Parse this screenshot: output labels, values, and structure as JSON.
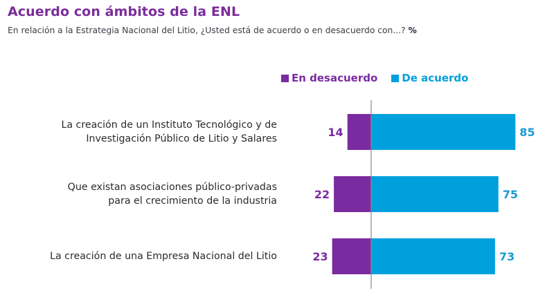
{
  "header": {
    "title": "Acuerdo con ámbitos de la ENL",
    "subtitle": "En relación a la Estrategia Nacional del Litio, ¿Usted está de acuerdo o en desacuerdo con...?",
    "subtitle_unit": "%"
  },
  "colors": {
    "disagree": "#7b2ba0",
    "agree": "#00a0dd",
    "axis": "#8a8a8a"
  },
  "chart_data": {
    "type": "bar",
    "orientation": "horizontal-diverging",
    "title": "Acuerdo con ámbitos de la ENL",
    "subtitle": "En relación a la Estrategia Nacional del Litio, ¿Usted está de acuerdo o en desacuerdo con...? %",
    "legend_position": "top-right",
    "grid": false,
    "categories": [
      [
        "La creación de un Instituto Tecnológico y de",
        "Investigación Público de Litio y Salares"
      ],
      [
        "Que existan asociaciones público-privadas",
        "para el crecimiento de la industria"
      ],
      [
        "La creación de una Empresa Nacional del Litio"
      ]
    ],
    "series": [
      {
        "name": "En desacuerdo",
        "values": [
          14,
          22,
          23
        ],
        "direction": "left"
      },
      {
        "name": "De acuerdo",
        "values": [
          85,
          75,
          73
        ],
        "direction": "right"
      }
    ],
    "unit": "%"
  }
}
